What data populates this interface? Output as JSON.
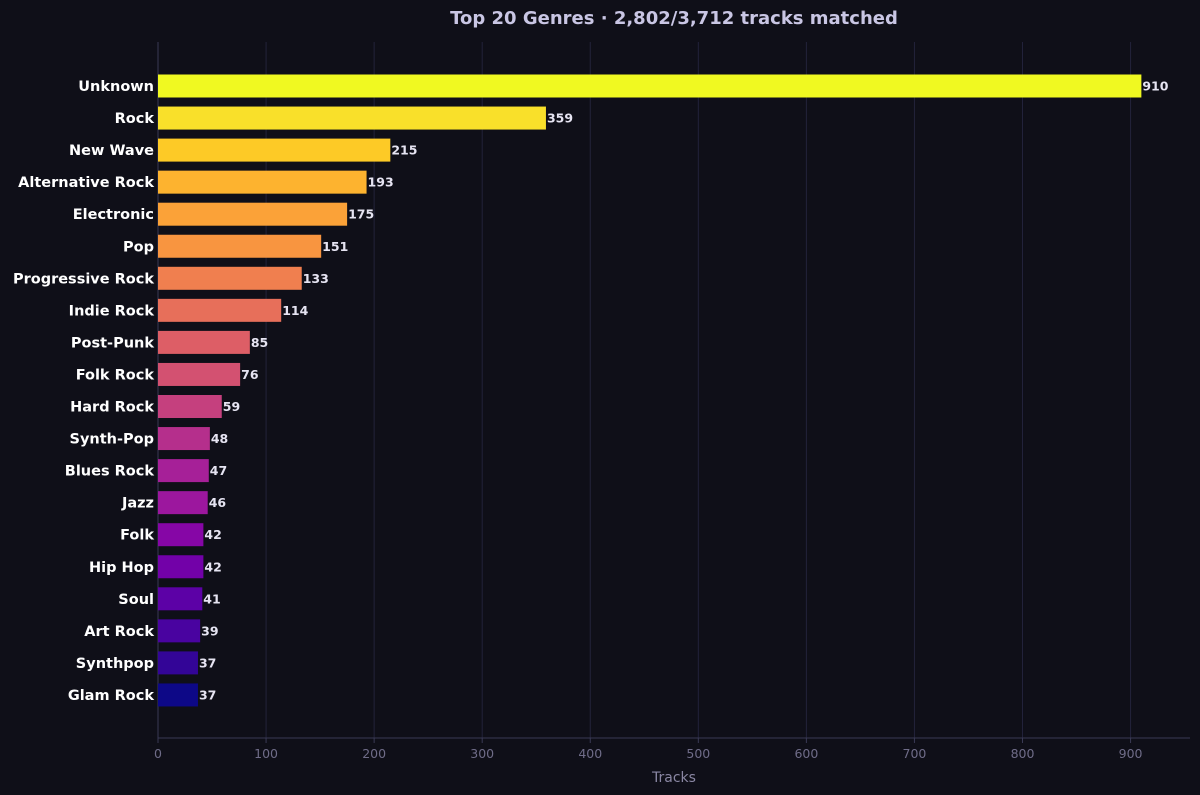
{
  "chart_data": {
    "type": "bar",
    "orientation": "horizontal",
    "title": "Top 20 Genres  ·  2,802/3,712 tracks matched",
    "xlabel": "Tracks",
    "ylabel": "",
    "xlim": [
      0,
      955
    ],
    "xticks": [
      0,
      100,
      200,
      300,
      400,
      500,
      600,
      700,
      800,
      900
    ],
    "grid": "vertical",
    "legend": "none",
    "categories": [
      "Unknown",
      "Rock",
      "New Wave",
      "Alternative Rock",
      "Electronic",
      "Pop",
      "Progressive Rock",
      "Indie Rock",
      "Post-Punk",
      "Folk Rock",
      "Hard Rock",
      "Synth-Pop",
      "Blues Rock",
      "Jazz",
      "Folk",
      "Hip Hop",
      "Soul",
      "Art Rock",
      "Synthpop",
      "Glam Rock"
    ],
    "values": [
      910,
      359,
      215,
      193,
      175,
      151,
      133,
      114,
      85,
      76,
      59,
      48,
      47,
      46,
      42,
      42,
      41,
      39,
      37,
      37
    ],
    "colors": [
      "#f0f921",
      "#f9e02a",
      "#fdca26",
      "#fdb32f",
      "#fba238",
      "#f89540",
      "#f07f4f",
      "#e76f5a",
      "#dd5e66",
      "#d35171",
      "#c5407e",
      "#b52f8c",
      "#a62098",
      "#9c179e",
      "#8606a6",
      "#7201a8",
      "#5c01a6",
      "#4903a0",
      "#330597",
      "#0d0887"
    ],
    "background_color": "#0f0f18",
    "grid_color": "#23233a",
    "axis_color": "#3a3a55"
  }
}
